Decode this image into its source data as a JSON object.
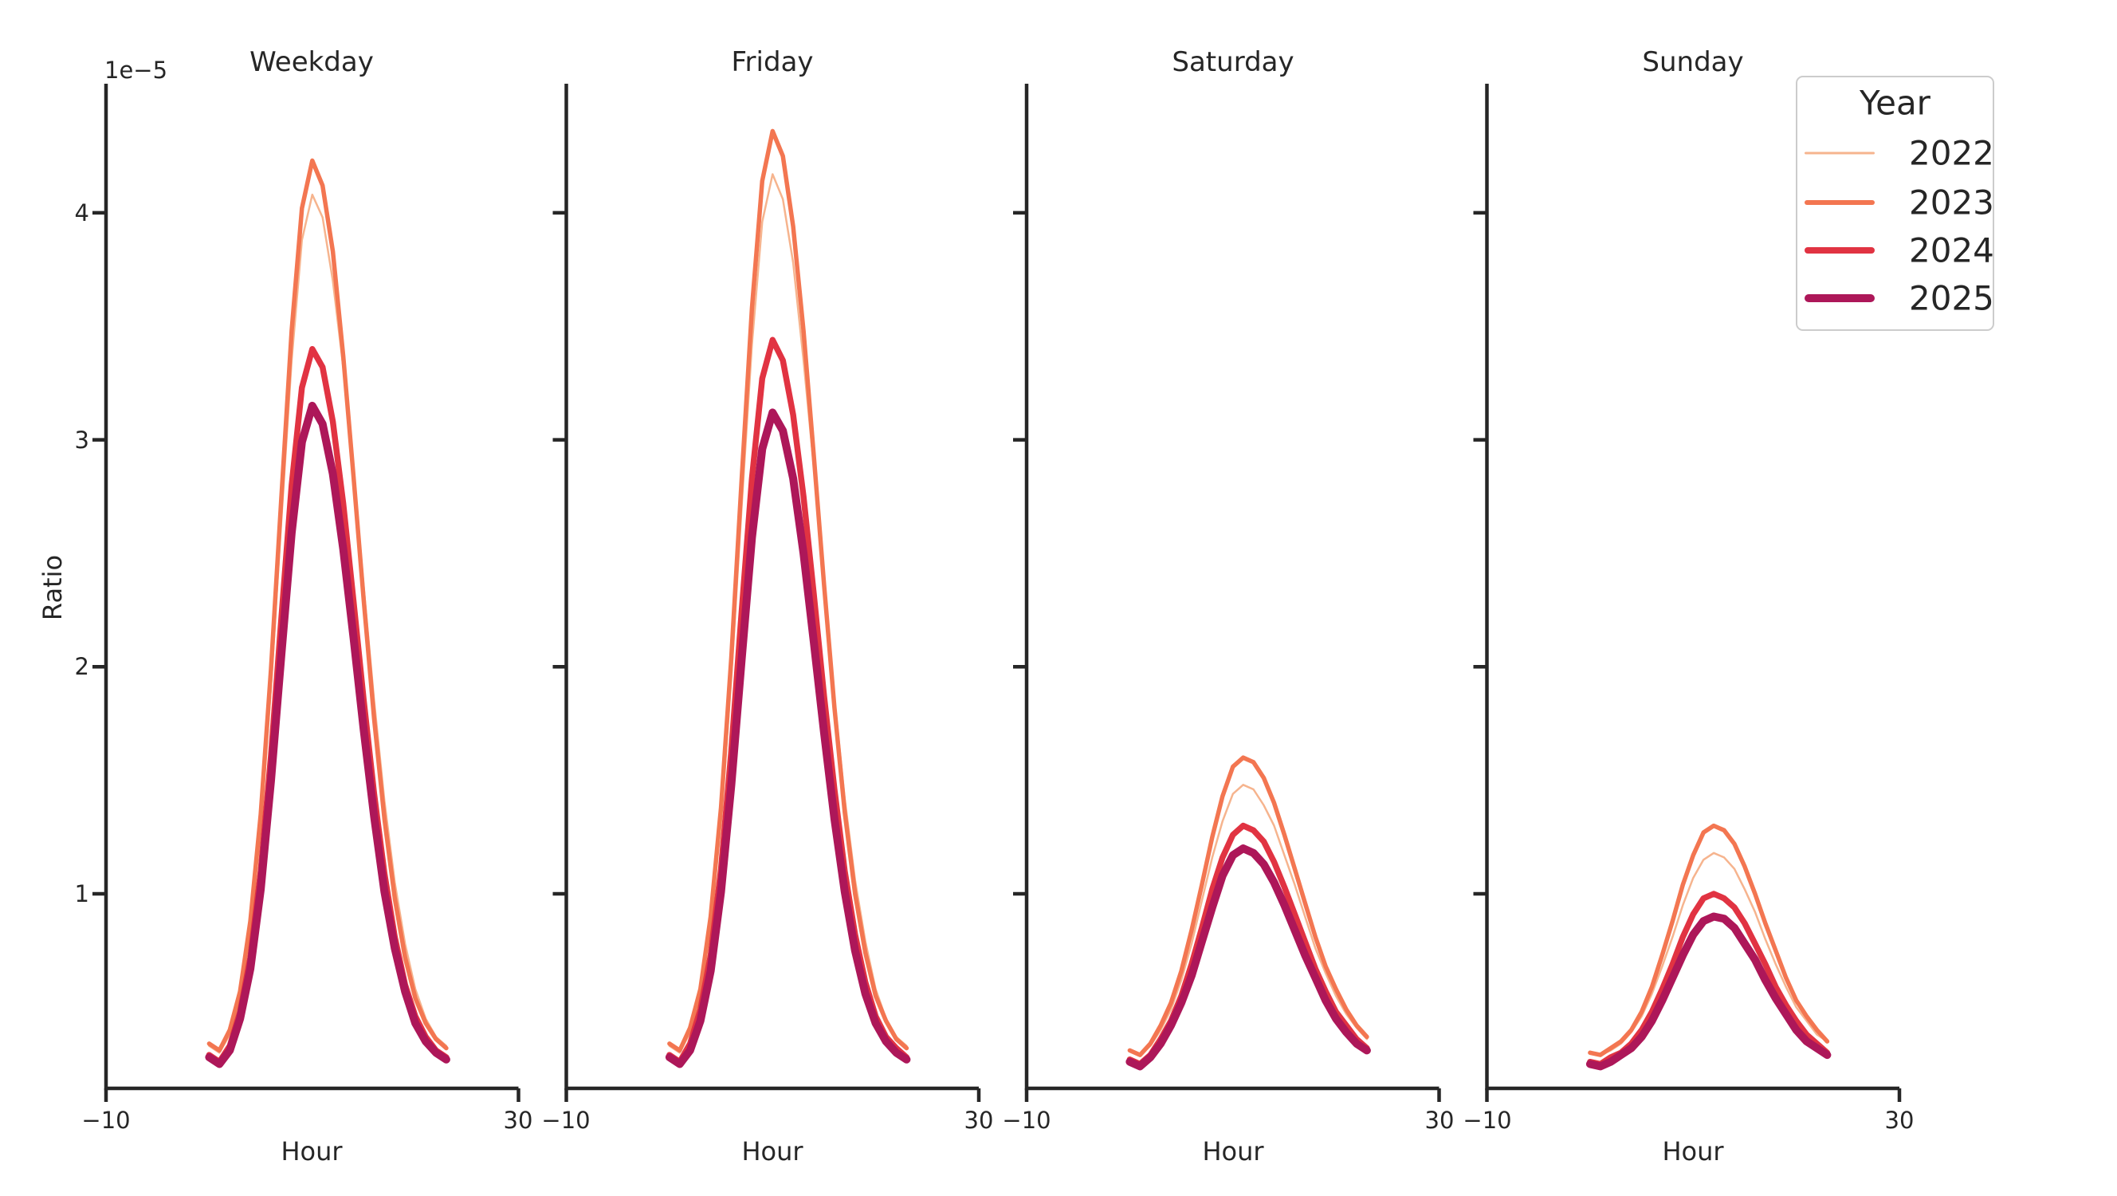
{
  "figure": {
    "background": "#ffffff",
    "text_color": "#262626",
    "spine_color": "#262626"
  },
  "axes": {
    "xlabel": "Hour",
    "ylabel": "Ratio",
    "offset_text": "1e−5",
    "xtick_labels": [
      "−10",
      "30"
    ],
    "xticks": [
      -10,
      30
    ],
    "ytick_labels": [
      "1",
      "2",
      "3",
      "4"
    ],
    "yticks": [
      1,
      2,
      3,
      4
    ]
  },
  "legend": {
    "title": "Year",
    "items": [
      {
        "label": "2022",
        "color": "#f6b48e",
        "line_width": 2.5
      },
      {
        "label": "2023",
        "color": "#f37651",
        "line_width": 5.5
      },
      {
        "label": "2024",
        "color": "#e13342",
        "line_width": 7.5
      },
      {
        "label": "2025",
        "color": "#ad1759",
        "line_width": 10
      }
    ]
  },
  "chart_data": {
    "type": "line",
    "title": "",
    "xlabel": "Hour",
    "ylabel": "Ratio",
    "unit": "1e-5",
    "xlim": [
      -10,
      30
    ],
    "ylim_e5": [
      0.14,
      4.57
    ],
    "grid": false,
    "legend_position": "upper right",
    "x": [
      0,
      1,
      2,
      3,
      4,
      5,
      6,
      7,
      8,
      9,
      10,
      11,
      12,
      13,
      14,
      15,
      16,
      17,
      18,
      19,
      20,
      21,
      22,
      23
    ],
    "facets": [
      {
        "title": "Weekday",
        "series": [
          {
            "name": "2022",
            "values": [
              0.33,
              0.3,
              0.38,
              0.55,
              0.84,
              1.29,
              1.91,
              2.64,
              3.35,
              3.88,
              4.08,
              3.98,
              3.7,
              3.32,
              2.87,
              2.35,
              1.85,
              1.41,
              1.05,
              0.78,
              0.58,
              0.45,
              0.37,
              0.33
            ]
          },
          {
            "name": "2023",
            "values": [
              0.34,
              0.31,
              0.4,
              0.57,
              0.88,
              1.35,
              1.99,
              2.74,
              3.48,
              4.02,
              4.23,
              4.12,
              3.83,
              3.37,
              2.84,
              2.29,
              1.77,
              1.33,
              0.98,
              0.72,
              0.54,
              0.43,
              0.36,
              0.32
            ]
          },
          {
            "name": "2024",
            "values": [
              0.29,
              0.26,
              0.33,
              0.48,
              0.72,
              1.1,
              1.61,
              2.21,
              2.8,
              3.23,
              3.4,
              3.32,
              3.08,
              2.72,
              2.29,
              1.85,
              1.44,
              1.09,
              0.81,
              0.6,
              0.46,
              0.37,
              0.31,
              0.28
            ]
          },
          {
            "name": "2025",
            "values": [
              0.28,
              0.25,
              0.31,
              0.45,
              0.67,
              1.02,
              1.5,
              2.05,
              2.59,
              2.99,
              3.15,
              3.07,
              2.85,
              2.52,
              2.13,
              1.72,
              1.34,
              1.01,
              0.76,
              0.57,
              0.43,
              0.35,
              0.3,
              0.27
            ]
          }
        ]
      },
      {
        "title": "Friday",
        "series": [
          {
            "name": "2022",
            "values": [
              0.33,
              0.3,
              0.39,
              0.56,
              0.86,
              1.32,
              1.95,
              2.7,
              3.42,
              3.96,
              4.17,
              4.06,
              3.78,
              3.35,
              2.88,
              2.37,
              1.86,
              1.42,
              1.06,
              0.79,
              0.58,
              0.45,
              0.37,
              0.33
            ]
          },
          {
            "name": "2023",
            "values": [
              0.34,
              0.31,
              0.41,
              0.58,
              0.9,
              1.38,
              2.04,
              2.82,
              3.58,
              4.14,
              4.36,
              4.25,
              3.94,
              3.48,
              2.93,
              2.36,
              1.82,
              1.36,
              1.0,
              0.74,
              0.55,
              0.44,
              0.36,
              0.32
            ]
          },
          {
            "name": "2024",
            "values": [
              0.29,
              0.26,
              0.34,
              0.49,
              0.73,
              1.11,
              1.63,
              2.24,
              2.83,
              3.27,
              3.44,
              3.35,
              3.11,
              2.75,
              2.32,
              1.87,
              1.46,
              1.1,
              0.82,
              0.61,
              0.46,
              0.37,
              0.32,
              0.28
            ]
          },
          {
            "name": "2025",
            "values": [
              0.28,
              0.25,
              0.31,
              0.44,
              0.66,
              1.01,
              1.48,
              2.03,
              2.57,
              2.96,
              3.12,
              3.04,
              2.83,
              2.5,
              2.11,
              1.71,
              1.33,
              1.01,
              0.75,
              0.56,
              0.43,
              0.35,
              0.3,
              0.27
            ]
          }
        ]
      },
      {
        "title": "Saturday",
        "series": [
          {
            "name": "2022",
            "values": [
              0.31,
              0.29,
              0.33,
              0.4,
              0.49,
              0.62,
              0.78,
              0.97,
              1.16,
              1.32,
              1.44,
              1.48,
              1.46,
              1.39,
              1.3,
              1.17,
              1.04,
              0.9,
              0.76,
              0.65,
              0.55,
              0.47,
              0.41,
              0.36
            ]
          },
          {
            "name": "2023",
            "values": [
              0.31,
              0.29,
              0.34,
              0.42,
              0.52,
              0.66,
              0.84,
              1.04,
              1.25,
              1.43,
              1.56,
              1.6,
              1.58,
              1.51,
              1.4,
              1.26,
              1.11,
              0.96,
              0.81,
              0.68,
              0.58,
              0.49,
              0.42,
              0.37
            ]
          },
          {
            "name": "2024",
            "values": [
              0.27,
              0.25,
              0.29,
              0.36,
              0.44,
              0.55,
              0.69,
              0.85,
              1.02,
              1.16,
              1.26,
              1.3,
              1.28,
              1.23,
              1.14,
              1.03,
              0.91,
              0.79,
              0.67,
              0.57,
              0.48,
              0.42,
              0.36,
              0.32
            ]
          },
          {
            "name": "2025",
            "values": [
              0.26,
              0.24,
              0.28,
              0.34,
              0.42,
              0.52,
              0.64,
              0.79,
              0.94,
              1.08,
              1.17,
              1.2,
              1.18,
              1.13,
              1.05,
              0.95,
              0.84,
              0.73,
              0.63,
              0.53,
              0.45,
              0.39,
              0.34,
              0.31
            ]
          }
        ]
      },
      {
        "title": "Sunday",
        "series": [
          {
            "name": "2022",
            "values": [
              0.3,
              0.29,
              0.31,
              0.34,
              0.39,
              0.46,
              0.56,
              0.68,
              0.81,
              0.95,
              1.07,
              1.15,
              1.18,
              1.16,
              1.11,
              1.02,
              0.92,
              0.8,
              0.69,
              0.59,
              0.5,
              0.44,
              0.38,
              0.35
            ]
          },
          {
            "name": "2023",
            "values": [
              0.3,
              0.29,
              0.32,
              0.35,
              0.4,
              0.48,
              0.59,
              0.73,
              0.88,
              1.04,
              1.17,
              1.27,
              1.3,
              1.28,
              1.22,
              1.12,
              1.0,
              0.87,
              0.75,
              0.63,
              0.53,
              0.46,
              0.4,
              0.35
            ]
          },
          {
            "name": "2024",
            "values": [
              0.26,
              0.25,
              0.28,
              0.3,
              0.34,
              0.4,
              0.48,
              0.58,
              0.69,
              0.81,
              0.91,
              0.98,
              1.0,
              0.98,
              0.94,
              0.87,
              0.78,
              0.69,
              0.59,
              0.51,
              0.44,
              0.38,
              0.34,
              0.3
            ]
          },
          {
            "name": "2025",
            "values": [
              0.25,
              0.24,
              0.26,
              0.29,
              0.32,
              0.37,
              0.44,
              0.53,
              0.63,
              0.73,
              0.82,
              0.88,
              0.9,
              0.89,
              0.85,
              0.78,
              0.71,
              0.62,
              0.54,
              0.47,
              0.4,
              0.35,
              0.32,
              0.29
            ]
          }
        ]
      }
    ]
  }
}
